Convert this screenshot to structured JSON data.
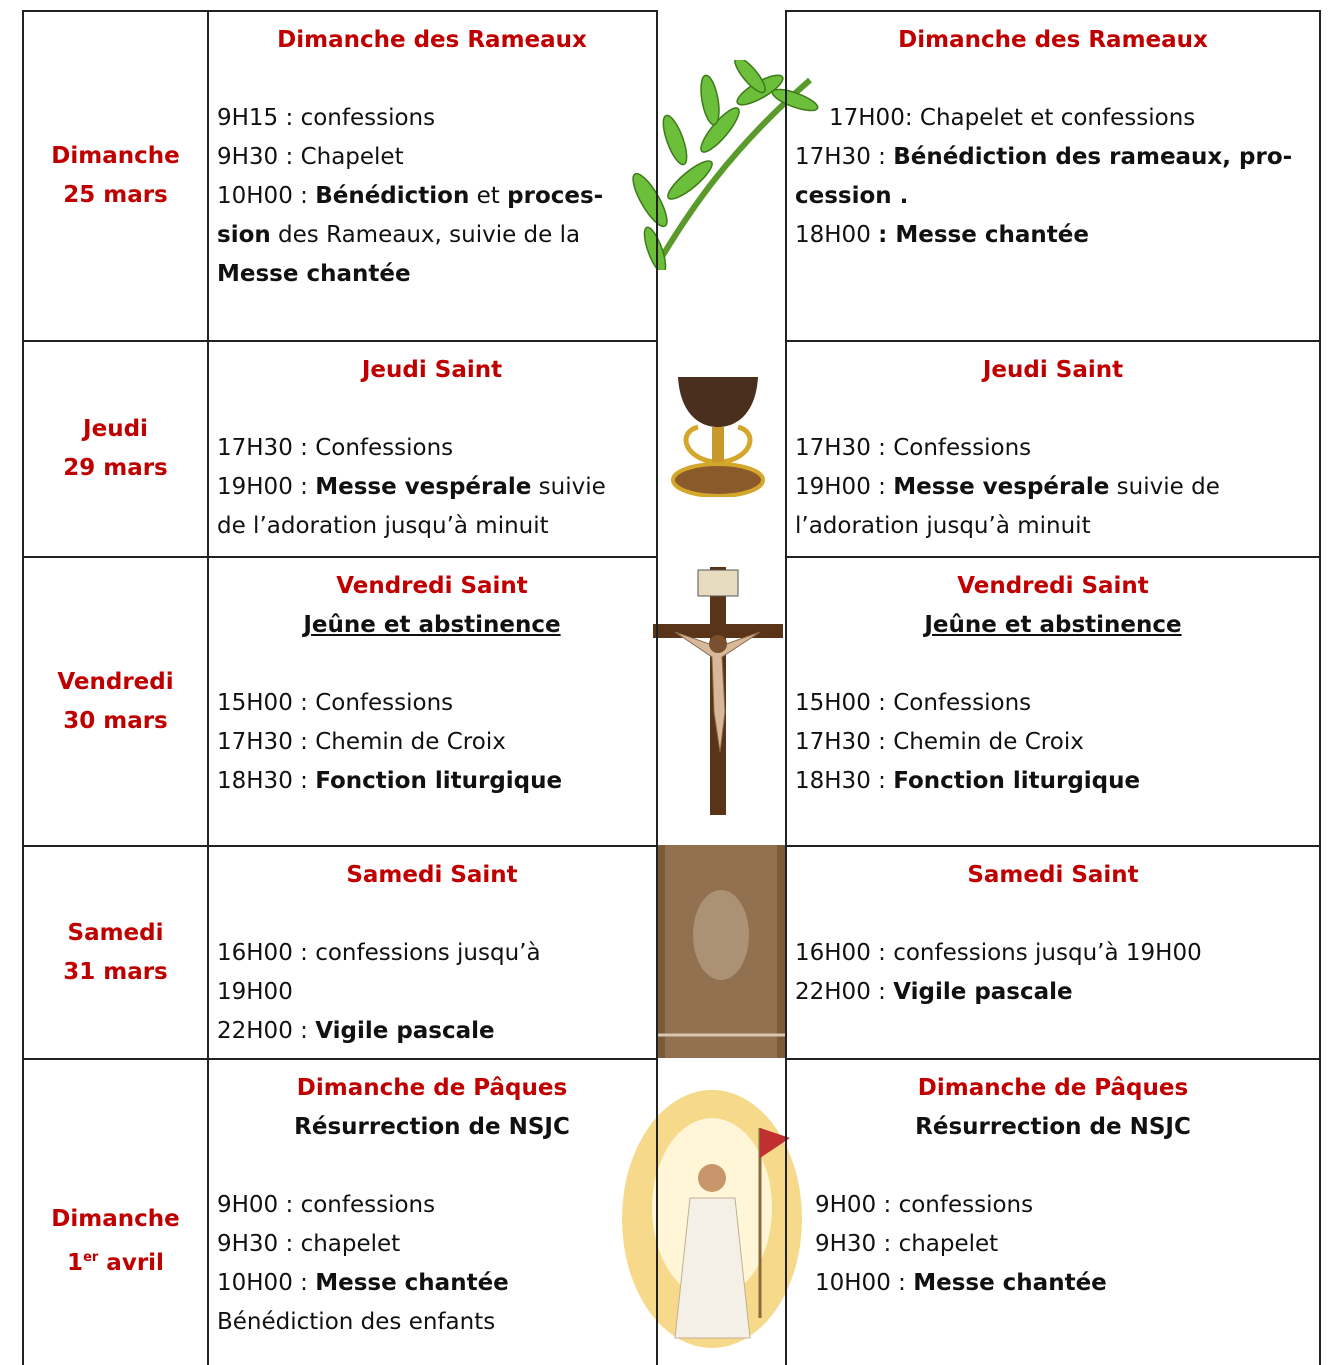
{
  "rows": [
    {
      "day": [
        [
          "Dimanche"
        ],
        [
          "25 mars"
        ]
      ],
      "left": {
        "titles": [
          {
            "text": "Dimanche des Rameaux",
            "kind": "heading"
          }
        ],
        "lines": [
          [
            "9H15 : confessions"
          ],
          [
            "9H30 : Chapelet"
          ],
          [
            "10H00 : ",
            {
              "text": "Bénédiction",
              "bold": true
            },
            " et ",
            {
              "text": "proces-",
              "bold": true
            }
          ],
          [
            {
              "text": "sion",
              "bold": true
            },
            " des Rameaux, suivie de la"
          ],
          [
            {
              "text": "Messe chantée",
              "bold": true
            }
          ]
        ]
      },
      "right": {
        "titles": [
          {
            "text": "Dimanche des Rameaux",
            "kind": "heading"
          }
        ],
        "lines": [
          [
            "17H00: Chapelet et confessions"
          ],
          [
            "17H30 : ",
            {
              "text": "Bénédiction des rameaux, pro-",
              "bold": true
            }
          ],
          [
            {
              "text": "cession .",
              "bold": true
            }
          ],
          [
            "18H00 ",
            {
              "text": ": Messe chantée",
              "bold": true
            }
          ]
        ]
      }
    },
    {
      "day": [
        [
          "Jeudi"
        ],
        [
          "29 mars"
        ]
      ],
      "left": {
        "titles": [
          {
            "text": "Jeudi Saint",
            "kind": "heading"
          }
        ],
        "lines": [
          [
            "17H30 : Confessions"
          ],
          [
            "19H00 : ",
            {
              "text": "Messe vespérale",
              "bold": true
            },
            " suivie"
          ],
          [
            "de l’adoration jusqu’à minuit"
          ]
        ]
      },
      "right": {
        "titles": [
          {
            "text": "Jeudi Saint",
            "kind": "heading"
          }
        ],
        "lines": [
          [
            "17H30 : Confessions"
          ],
          [
            "19H00 : ",
            {
              "text": "Messe vespérale",
              "bold": true
            },
            " suivie de"
          ],
          [
            "l’adoration jusqu’à minuit"
          ]
        ]
      }
    },
    {
      "day": [
        [
          "Vendredi"
        ],
        [
          "30 mars"
        ]
      ],
      "left": {
        "titles": [
          {
            "text": "Vendredi Saint",
            "kind": "heading"
          },
          {
            "text": "Jeûne et abstinence",
            "kind": "underlined"
          }
        ],
        "lines": [
          [
            "15H00 : Confessions"
          ],
          [
            "17H30 : Chemin de Croix"
          ],
          [
            "18H30 : ",
            {
              "text": "Fonction liturgique",
              "bold": true
            }
          ]
        ]
      },
      "right": {
        "titles": [
          {
            "text": "Vendredi Saint",
            "kind": "heading"
          },
          {
            "text": "Jeûne et abstinence",
            "kind": "underlined"
          }
        ],
        "lines": [
          [
            "15H00 : Confessions"
          ],
          [
            "17H30 : Chemin de Croix"
          ],
          [
            "18H30 : ",
            {
              "text": "Fonction liturgique",
              "bold": true
            }
          ]
        ]
      }
    },
    {
      "day": [
        [
          "Samedi"
        ],
        [
          "31 mars"
        ]
      ],
      "left": {
        "titles": [
          {
            "text": "Samedi Saint",
            "kind": "heading"
          }
        ],
        "lines": [
          [
            "16H00 : confessions jusqu’à"
          ],
          [
            "19H00"
          ],
          [
            "22H00 : ",
            {
              "text": "Vigile pascale",
              "bold": true
            }
          ]
        ]
      },
      "right": {
        "titles": [
          {
            "text": "Samedi Saint",
            "kind": "heading"
          }
        ],
        "lines": [
          [
            "16H00 : confessions jusqu’à 19H00"
          ],
          [
            "22H00 : ",
            {
              "text": "Vigile pascale",
              "bold": true
            }
          ]
        ]
      }
    },
    {
      "day": [
        [
          "Dimanche"
        ],
        [
          "1",
          {
            "text": "er",
            "sup": true
          },
          " avril"
        ]
      ],
      "left": {
        "titles": [
          {
            "text": "Dimanche de Pâques",
            "kind": "heading"
          },
          {
            "text": "Résurrection de NSJC",
            "kind": "subheading"
          }
        ],
        "lines": [
          [
            "9H00 : confessions"
          ],
          [
            "9H30 : chapelet"
          ],
          [
            "10H00 : ",
            {
              "text": "Messe chantée",
              "bold": true
            }
          ],
          [
            "Bénédiction des enfants"
          ]
        ]
      },
      "right": {
        "titles": [
          {
            "text": "Dimanche de Pâques",
            "kind": "heading"
          },
          {
            "text": "Résurrection de NSJC",
            "kind": "subheading"
          }
        ],
        "lines": [
          [
            "9H00 : confessions"
          ],
          [
            "9H30 : chapelet"
          ],
          [
            "10H00 : ",
            {
              "text": "Messe chantée",
              "bold": true
            }
          ]
        ]
      }
    }
  ]
}
